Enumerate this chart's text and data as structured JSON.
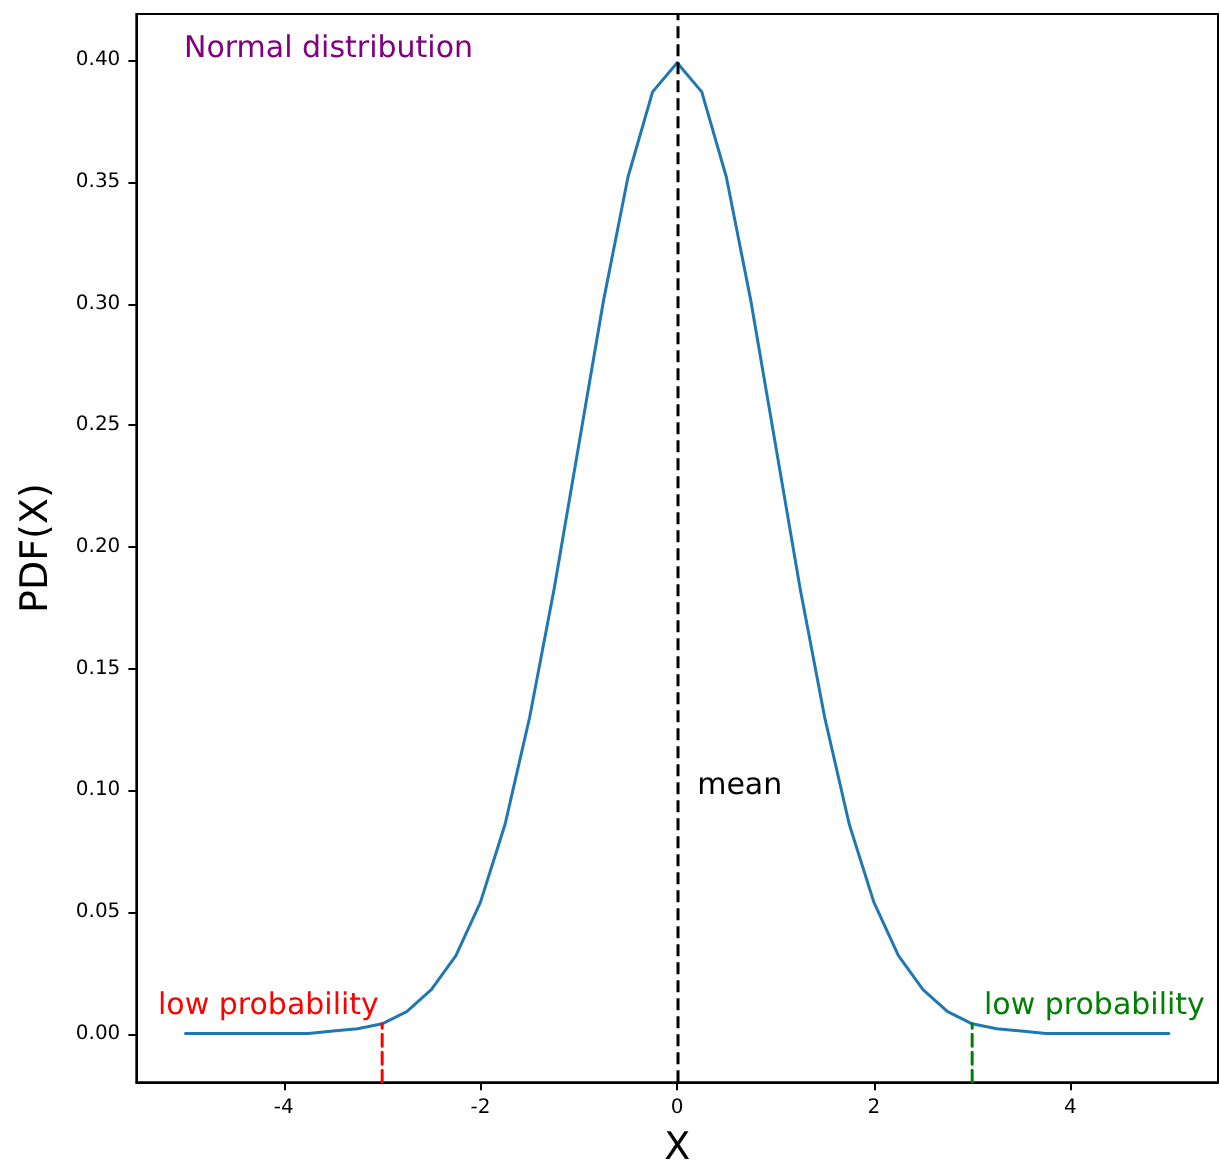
{
  "chart_data": {
    "type": "line",
    "title": "Normal distribution",
    "xlabel": "X",
    "ylabel": "PDF(X)",
    "grid": false,
    "marker": "none",
    "xlim": [
      -5.5,
      5.5
    ],
    "xticks": [
      -4,
      -2,
      0,
      2,
      4
    ],
    "ylim": [
      -0.02,
      0.419
    ],
    "yticks": [
      {
        "value": 0,
        "label": "0.00"
      },
      {
        "value": 0.05,
        "label": "0.05"
      },
      {
        "value": 0.1,
        "label": "0.10"
      },
      {
        "value": 0.15,
        "label": "0.15"
      },
      {
        "value": 0.2,
        "label": "0.20"
      },
      {
        "value": 0.25,
        "label": "0.25"
      },
      {
        "value": 0.3,
        "label": "0.30"
      },
      {
        "value": 0.35,
        "label": "0.35"
      },
      {
        "value": 0.4,
        "label": "0.40"
      }
    ],
    "series": [
      {
        "color": "#1f77b4",
        "line_style": "solid",
        "x": [
          -5,
          -4.75,
          -4.5,
          -4.25,
          -4,
          -3.75,
          -3.5,
          -3.25,
          -3,
          -2.75,
          -2.5,
          -2.25,
          -2,
          -1.75,
          -1.5,
          -1.25,
          -1,
          -0.75,
          -0.5,
          -0.25,
          0,
          0.25,
          0.5,
          0.75,
          1,
          1.25,
          1.5,
          1.75,
          2,
          2.25,
          2.5,
          2.75,
          3,
          3.25,
          3.5,
          3.75,
          4,
          4.25,
          4.5,
          4.75,
          5
        ],
        "values": [
          0,
          0,
          0,
          0,
          0,
          0,
          0.001,
          0.002,
          0.004,
          0.009,
          0.018,
          0.032,
          0.054,
          0.086,
          0.13,
          0.183,
          0.242,
          0.301,
          0.352,
          0.387,
          0.399,
          0.387,
          0.352,
          0.301,
          0.242,
          0.183,
          0.13,
          0.086,
          0.054,
          0.032,
          0.018,
          0.009,
          0.004,
          0.002,
          0.001,
          0,
          0,
          0,
          0,
          0,
          0
        ]
      },
      {
        "color": "#ff0000",
        "line_style": "dashed",
        "x": [
          -3,
          -3
        ],
        "values": [
          -0.02,
          0.004
        ]
      },
      {
        "color": "#008000",
        "line_style": "dashed",
        "x": [
          3,
          3
        ],
        "values": [
          -0.02,
          0.004
        ]
      }
    ],
    "ref_lines": [
      {
        "axis": "x",
        "value": 0,
        "label": "mean",
        "color": "#000000",
        "line_style": "dashed"
      }
    ],
    "annotations": [
      "low probability",
      "low probability"
    ]
  }
}
